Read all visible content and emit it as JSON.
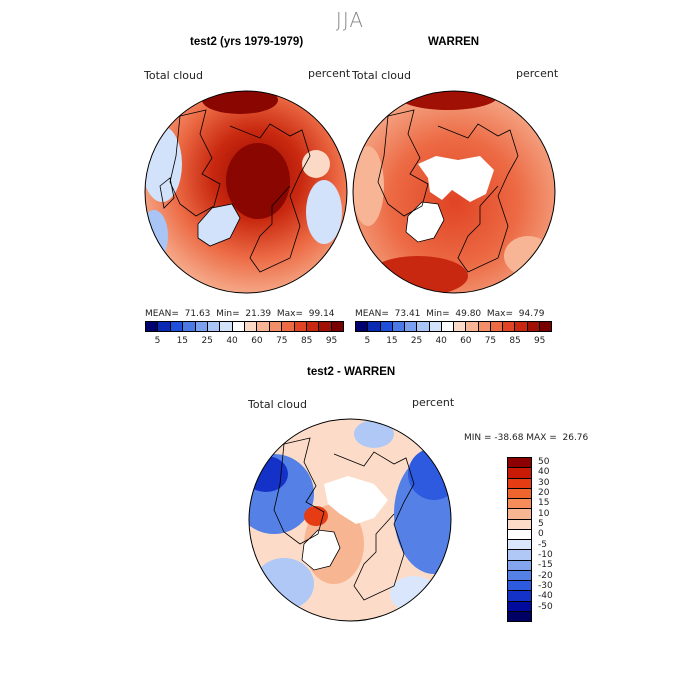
{
  "season": "JJA",
  "panels": [
    {
      "title": "test2 (yrs 1979-1979)",
      "variable": "Total cloud",
      "units": "percent",
      "stats": {
        "mean": "71.63",
        "min": "21.39",
        "max": "99.14"
      },
      "colorbar_ticks": [
        "5",
        "15",
        "25",
        "40",
        "60",
        "75",
        "85",
        "95"
      ]
    },
    {
      "title": "WARREN",
      "variable": "Total cloud",
      "units": "percent",
      "stats": {
        "mean": "73.41",
        "min": "49.80",
        "max": "94.79"
      },
      "colorbar_ticks": [
        "5",
        "15",
        "25",
        "40",
        "60",
        "75",
        "85",
        "95"
      ]
    }
  ],
  "diff": {
    "title": "test2 - WARREN",
    "variable": "Total cloud",
    "units": "percent",
    "minmax": "MIN = -38.68 MAX =  26.76",
    "colorbar_ticks": [
      "50",
      "40",
      "30",
      "20",
      "15",
      "10",
      "5",
      "0",
      "-5",
      "-10",
      "-15",
      "-20",
      "-30",
      "-40",
      "-50"
    ]
  },
  "stat_labels": {
    "mean": "MEAN=",
    "min": "Min=",
    "max": "Max="
  },
  "colors": {
    "abs_scale": [
      "#00006e",
      "#0a2ab4",
      "#1e50dc",
      "#4b7ae6",
      "#7aa0ef",
      "#a9c5f5",
      "#d2e2fa",
      "#ffffff",
      "#fbd9c7",
      "#f7b596",
      "#f28f68",
      "#ec6a44",
      "#e04424",
      "#c8280f",
      "#a01005",
      "#780000"
    ],
    "diff_scale": [
      "#8c0000",
      "#c81a05",
      "#e63c14",
      "#f0642d",
      "#f58c5a",
      "#f8b592",
      "#fcdcc8",
      "#ffffff",
      "#d9e6fb",
      "#afc8f5",
      "#82a5ee",
      "#5580e6",
      "#2d5ade",
      "#1432c8",
      "#000a9c",
      "#000064"
    ]
  },
  "chart_data": [
    {
      "type": "heatmap",
      "projection": "north polar stereographic",
      "title": "test2 (yrs 1979-1979)",
      "variable": "Total cloud",
      "units": "percent",
      "mean": 71.63,
      "min": 21.39,
      "max": 99.14,
      "contour_levels": [
        5,
        15,
        25,
        40,
        60,
        75,
        85,
        95
      ]
    },
    {
      "type": "heatmap",
      "projection": "north polar stereographic",
      "title": "WARREN",
      "variable": "Total cloud",
      "units": "percent",
      "mean": 73.41,
      "min": 49.8,
      "max": 94.79,
      "contour_levels": [
        5,
        15,
        25,
        40,
        60,
        75,
        85,
        95
      ]
    },
    {
      "type": "heatmap",
      "projection": "north polar stereographic",
      "title": "test2 - WARREN",
      "variable": "Total cloud",
      "units": "percent",
      "min": -38.68,
      "max": 26.76,
      "contour_levels": [
        -50,
        -40,
        -30,
        -20,
        -15,
        -10,
        -5,
        0,
        5,
        10,
        15,
        20,
        30,
        40,
        50
      ]
    }
  ]
}
